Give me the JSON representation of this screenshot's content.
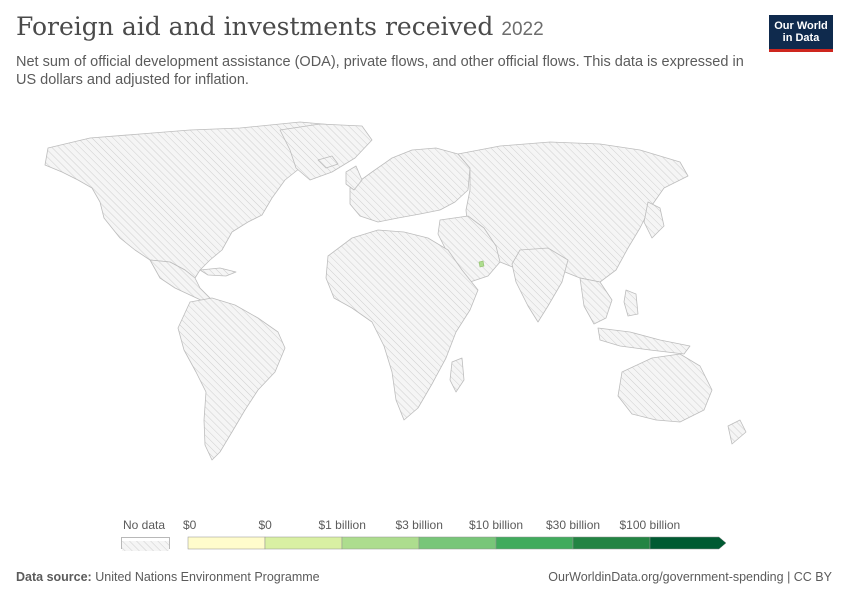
{
  "header": {
    "title": "Foreign aid and investments received",
    "year": "2022",
    "subtitle": "Net sum of official development assistance (ODA), private flows, and other official flows. This data is expressed in US dollars and adjusted for inflation."
  },
  "logo": {
    "line1": "Our World",
    "line2": "in Data"
  },
  "legend": {
    "no_data_label": "No data",
    "bins": [
      {
        "label": "$0",
        "color": "#fffccc"
      },
      {
        "label": "$0",
        "color": "#d9f0a3"
      },
      {
        "label": "$1 billion",
        "color": "#addd8e"
      },
      {
        "label": "$3 billion",
        "color": "#78c679"
      },
      {
        "label": "$10 billion",
        "color": "#41ab5d"
      },
      {
        "label": "$30 billion",
        "color": "#238443"
      },
      {
        "label": "$100 billion",
        "color": "#005a32"
      }
    ]
  },
  "chart_data": {
    "type": "choropleth-map",
    "metric": "Foreign aid and investments received",
    "year": "2022",
    "countries_with_data": [
      {
        "name": "Qatar",
        "bin": "$0 – $1 billion",
        "color": "#d9f0a3"
      }
    ],
    "all_other_countries": "No data"
  },
  "footer": {
    "source_label": "Data source:",
    "source": "United Nations Environment Programme",
    "url": "OurWorldinData.org/government-spending | CC BY"
  },
  "colors": {
    "no_data_fill": "#f2f2f2",
    "hatch": "#c9c9c9",
    "border": "#bdbdbd",
    "logo_bg": "#0f2a4d",
    "logo_accent": "#ce261e"
  }
}
